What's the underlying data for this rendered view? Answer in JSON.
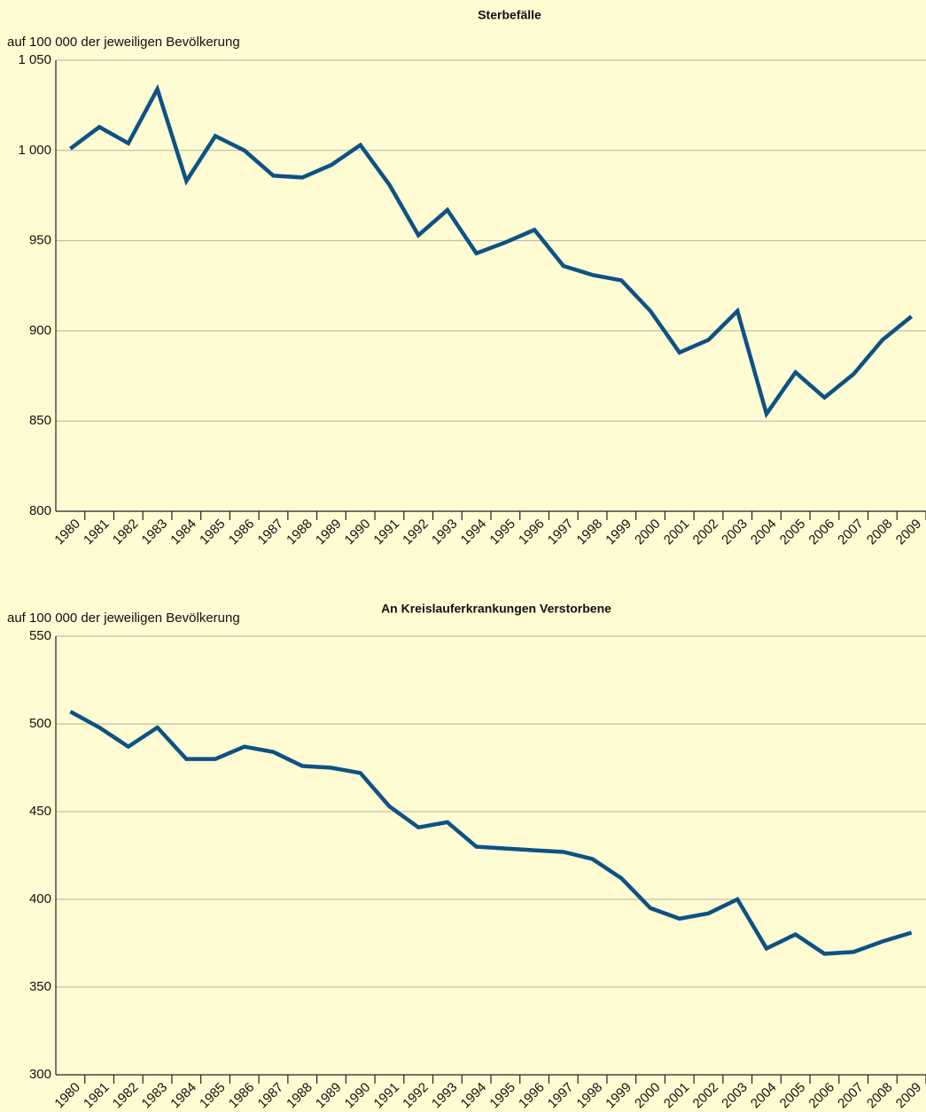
{
  "chart_data": [
    {
      "type": "line",
      "title": "Sterbefälle",
      "y_label": "auf 100 000 der jeweiligen Bevölkerung",
      "categories": [
        "1980",
        "1981",
        "1982",
        "1983",
        "1984",
        "1985",
        "1986",
        "1987",
        "1988",
        "1989",
        "1990",
        "1991",
        "1992",
        "1993",
        "1994",
        "1995",
        "1996",
        "1997",
        "1998",
        "1999",
        "2000",
        "2001",
        "2002",
        "2003",
        "2004",
        "2005",
        "2006",
        "2007",
        "2008",
        "2009"
      ],
      "values": [
        1001,
        1013,
        1004,
        1034,
        983,
        1008,
        1000,
        986,
        985,
        992,
        1003,
        981,
        953,
        967,
        943,
        949,
        956,
        936,
        931,
        928,
        911,
        888,
        895,
        911,
        854,
        877,
        863,
        876,
        895,
        908
      ],
      "color": "#0d5284",
      "ylim": [
        800,
        1050
      ],
      "yticks": [
        800,
        850,
        900,
        950,
        {
          "value": 1000,
          "label": "1 000"
        },
        {
          "value": 1050,
          "label": "1 050"
        }
      ],
      "grid": true
    },
    {
      "type": "line",
      "title": "An Kreislauferkrankungen Verstorbene",
      "y_label": "auf 100 000 der jeweiligen Bevölkerung",
      "categories": [
        "1980",
        "1981",
        "1982",
        "1983",
        "1984",
        "1985",
        "1986",
        "1987",
        "1988",
        "1989",
        "1990",
        "1991",
        "1992",
        "1993",
        "1994",
        "1995",
        "1996",
        "1997",
        "1998",
        "1999",
        "2000",
        "2001",
        "2002",
        "2003",
        "2004",
        "2005",
        "2006",
        "2007",
        "2008",
        "2009"
      ],
      "values": [
        507,
        498,
        487,
        498,
        480,
        480,
        487,
        484,
        476,
        475,
        472,
        453,
        441,
        444,
        430,
        429,
        428,
        427,
        423,
        412,
        395,
        389,
        392,
        400,
        372,
        380,
        369,
        370,
        376,
        381
      ],
      "color": "#0d5284",
      "ylim": [
        300,
        550
      ],
      "yticks": [
        300,
        350,
        400,
        450,
        500,
        550
      ],
      "grid": true
    }
  ]
}
